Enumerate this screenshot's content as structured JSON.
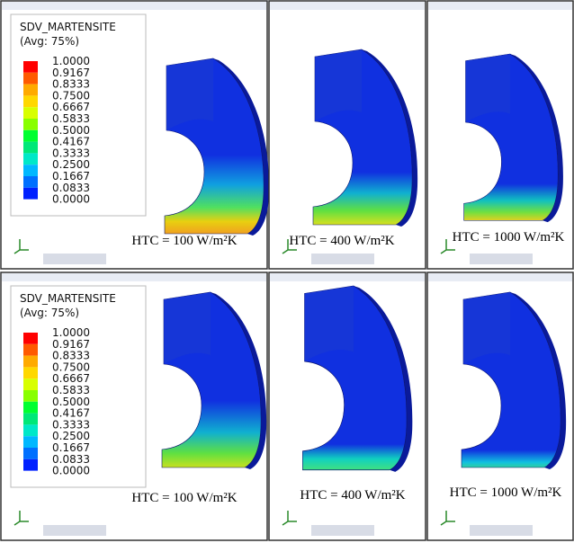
{
  "rows": [
    {
      "legend": {
        "title": "SDV_MARTENSITE",
        "subtitle": "(Avg: 75%)",
        "levels": [
          "1.0000",
          "0.9167",
          "0.8333",
          "0.7500",
          "0.6667",
          "0.5833",
          "0.5000",
          "0.4167",
          "0.3333",
          "0.2500",
          "0.1667",
          "0.0833",
          "0.0000"
        ]
      },
      "panels": [
        {
          "label": "HTC = 100 W/m²K"
        },
        {
          "label": "HTC = 400 W/m²K"
        },
        {
          "label": "HTC = 1000 W/m²K"
        }
      ]
    },
    {
      "legend": {
        "title": "SDV_MARTENSITE",
        "subtitle": "(Avg: 75%)",
        "levels": [
          "1.0000",
          "0.9167",
          "0.8333",
          "0.7500",
          "0.6667",
          "0.5833",
          "0.5000",
          "0.4167",
          "0.3333",
          "0.2500",
          "0.1667",
          "0.0833",
          "0.0000"
        ]
      },
      "panels": [
        {
          "label": "HTC = 100 W/m²K"
        },
        {
          "label": "HTC = 400 W/m²K"
        },
        {
          "label": "HTC = 1000 W/m²K"
        }
      ]
    }
  ]
}
